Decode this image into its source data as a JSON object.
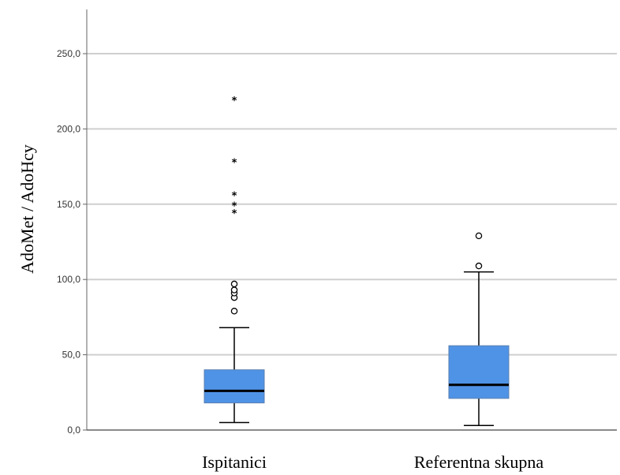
{
  "chart_data": {
    "type": "boxplot",
    "title": "",
    "xlabel": "",
    "ylabel": "AdoMet / AdoHcy",
    "ylim": [
      0,
      260
    ],
    "yticks": [
      0,
      50,
      100,
      150,
      200,
      250
    ],
    "ytick_labels": [
      "0,0",
      "50,0",
      "100,0",
      "150,0",
      "200,0",
      "250,0"
    ],
    "grid": true,
    "box_color": "#4f93e6",
    "categories": [
      "Ispitanici",
      "Referentna skupna"
    ],
    "boxes": [
      {
        "category": "Ispitanici",
        "whisker_low": 5,
        "q1": 18,
        "median": 26,
        "q3": 40,
        "whisker_high": 68,
        "outliers": [
          79,
          88,
          91,
          93,
          97
        ],
        "extremes": [
          144,
          149,
          156,
          178,
          219
        ]
      },
      {
        "category": "Referentna skupna",
        "whisker_low": 3,
        "q1": 21,
        "median": 30,
        "q3": 56,
        "whisker_high": 105,
        "outliers": [
          109,
          129
        ],
        "extremes": []
      }
    ]
  }
}
